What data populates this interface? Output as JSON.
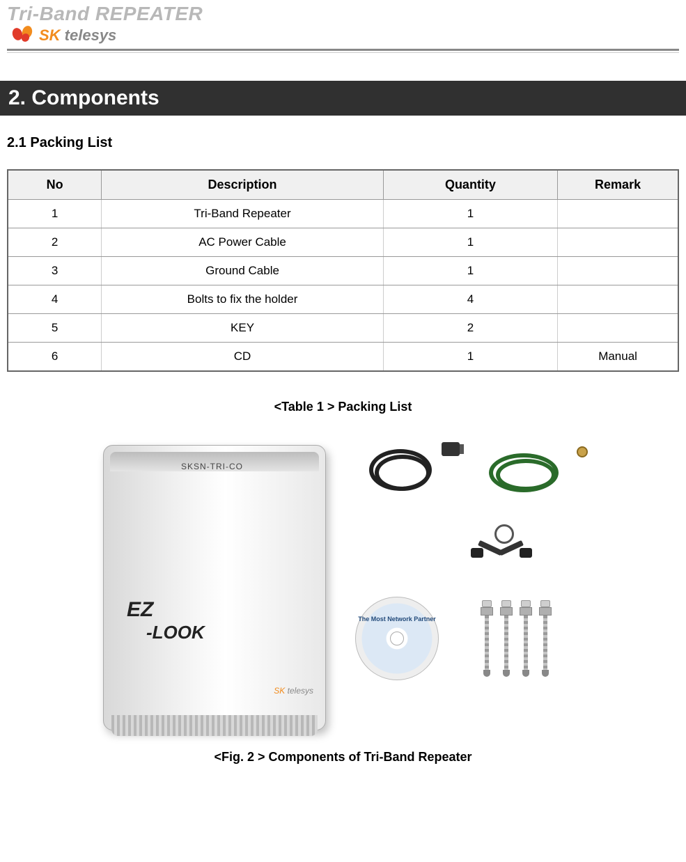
{
  "header": {
    "product_title": "Tri-Band REPEATER",
    "logo_text_prefix": "SK",
    "logo_text_suffix": " telesys"
  },
  "section": {
    "number_title": "2. Components",
    "sub_number_title": "2.1  Packing List"
  },
  "table": {
    "columns": [
      "No",
      "Description",
      "Quantity",
      "Remark"
    ],
    "rows": [
      [
        "1",
        "Tri-Band Repeater",
        "1",
        ""
      ],
      [
        "2",
        "AC Power Cable",
        "1",
        ""
      ],
      [
        "3",
        "Ground Cable",
        "1",
        ""
      ],
      [
        "4",
        "Bolts to fix the holder",
        "4",
        ""
      ],
      [
        "5",
        "KEY",
        "2",
        ""
      ],
      [
        "6",
        "CD",
        "1",
        "Manual"
      ]
    ],
    "header_bg": "#f0f0f0",
    "border_color": "#999999",
    "col_widths_pct": [
      14,
      42,
      26,
      18
    ]
  },
  "captions": {
    "table_caption": "<Table 1 > Packing List",
    "figure_caption": "<Fig. 2 > Components of Tri-Band Repeater"
  },
  "device": {
    "top_label": "SKSN-TRI-CO",
    "brand_line1": "EZ",
    "brand_line2": "-LOOK",
    "mini_logo_prefix": "SK",
    "mini_logo_suffix": " telesys"
  },
  "cd": {
    "label": "The Most Network Partner"
  },
  "colors": {
    "header_gray": "#b8b8b8",
    "section_bar_bg": "#303030",
    "section_bar_fg": "#ffffff",
    "orange": "#f28c1e",
    "red": "#e13b2a",
    "cable_black": "#222222",
    "cable_green": "#2a6b2a"
  }
}
